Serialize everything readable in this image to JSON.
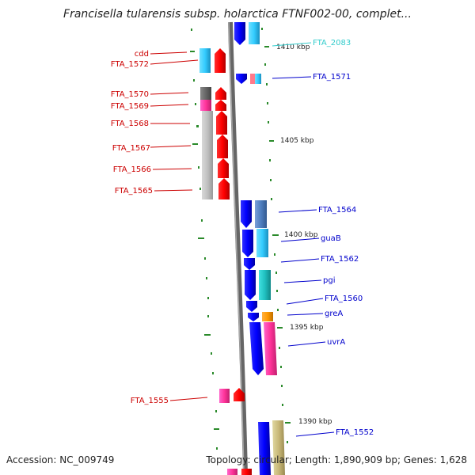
{
  "title": "Francisella tularensis subsp. holarctica FTNF002-00, complet...",
  "footer": {
    "accession": "Accession: NC_009749",
    "summary": "Topology: circular; Length: 1,890,909 bp; Genes: 1,628"
  },
  "ticks": [
    {
      "label": "1410 kbp"
    },
    {
      "label": "1405 kbp"
    },
    {
      "label": "1400 kbp"
    },
    {
      "label": "1395 kbp"
    },
    {
      "label": "1390 kbp"
    }
  ],
  "genes_left": [
    {
      "label": "cdd",
      "color": "#cc0000"
    },
    {
      "label": "FTA_1572",
      "color": "#cc0000"
    },
    {
      "label": "FTA_1570",
      "color": "#cc0000"
    },
    {
      "label": "FTA_1569",
      "color": "#cc0000"
    },
    {
      "label": "FTA_1568",
      "color": "#cc0000"
    },
    {
      "label": "FTA_1567",
      "color": "#cc0000"
    },
    {
      "label": "FTA_1566",
      "color": "#cc0000"
    },
    {
      "label": "FTA_1565",
      "color": "#cc0000"
    },
    {
      "label": "FTA_1555",
      "color": "#cc0000"
    }
  ],
  "genes_right": [
    {
      "label": "FTA_2083",
      "color": "#33cccc"
    },
    {
      "label": "FTA_1571",
      "color": "#0000cc"
    },
    {
      "label": "FTA_1564",
      "color": "#0000cc"
    },
    {
      "label": "guaB",
      "color": "#0000cc"
    },
    {
      "label": "FTA_1562",
      "color": "#0000cc"
    },
    {
      "label": "pgi",
      "color": "#0000cc"
    },
    {
      "label": "FTA_1560",
      "color": "#0000cc"
    },
    {
      "label": "greA",
      "color": "#0000cc"
    },
    {
      "label": "uvrA",
      "color": "#0000cc"
    },
    {
      "label": "FTA_1552",
      "color": "#0000cc"
    }
  ]
}
